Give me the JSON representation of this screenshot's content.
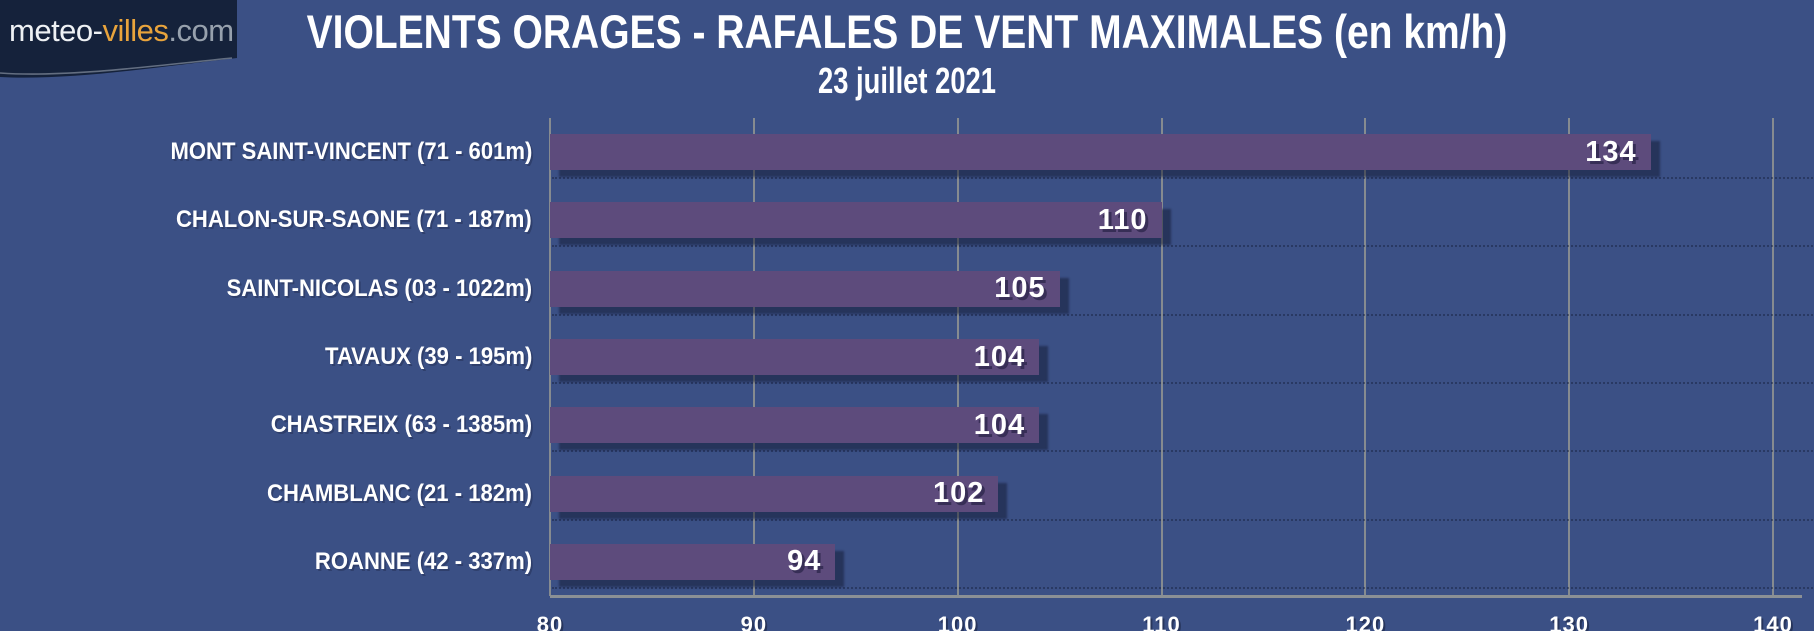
{
  "logo": {
    "text_white": "meteo-",
    "text_orange": "villes",
    "text_gray": ".com"
  },
  "chart_data": {
    "type": "bar",
    "orientation": "horizontal",
    "title": "VIOLENTS ORAGES - RAFALES DE VENT MAXIMALES (en km/h)",
    "subtitle": "23 juillet 2021",
    "unit": "km/h",
    "categories": [
      "MONT SAINT-VINCENT (71 - 601m)",
      "CHALON-SUR-SAONE (71 - 187m)",
      "SAINT-NICOLAS (03 - 1022m)",
      "TAVAUX (39 - 195m)",
      "CHASTREIX (63 - 1385m)",
      "CHAMBLANC (21 - 182m)",
      "ROANNE (42 - 337m)"
    ],
    "values": [
      134,
      110,
      105,
      104,
      104,
      102,
      94
    ],
    "xlim": [
      80,
      140
    ],
    "x_ticks": [
      80,
      90,
      100,
      110,
      120,
      130,
      140
    ],
    "grid": true,
    "legend": false,
    "bar_color": "#5d4b7c",
    "background_color": "#3b5085",
    "gridline_color": "#868b90",
    "text_color": "#ffffff",
    "logo_background_color": "#15223b"
  }
}
